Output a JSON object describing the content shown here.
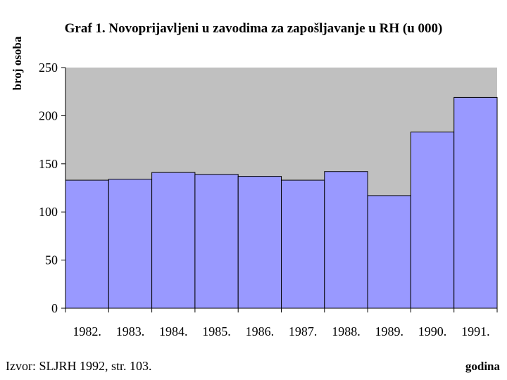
{
  "chart_data": {
    "type": "bar",
    "title": "Graf 1. Novoprijavljeni u zavodima za zapošljavanje u RH (u 000)",
    "ylabel": "broj osoba",
    "xlabel": "godina",
    "categories": [
      "1982.",
      "1983.",
      "1984.",
      "1985.",
      "1986.",
      "1987.",
      "1988.",
      "1989.",
      "1990.",
      "1991."
    ],
    "values": [
      133,
      134,
      141,
      139,
      137,
      133,
      142,
      117,
      183,
      219
    ],
    "ylim": [
      0,
      250
    ],
    "yticks": [
      "0",
      "50",
      "100",
      "150",
      "200",
      "250"
    ],
    "grid": false,
    "colors": {
      "bar": "#9999ff",
      "plot_background": "#c0c0c0",
      "outline": "#000000"
    }
  },
  "source": "Izvor: SLJRH 1992, str. 103."
}
